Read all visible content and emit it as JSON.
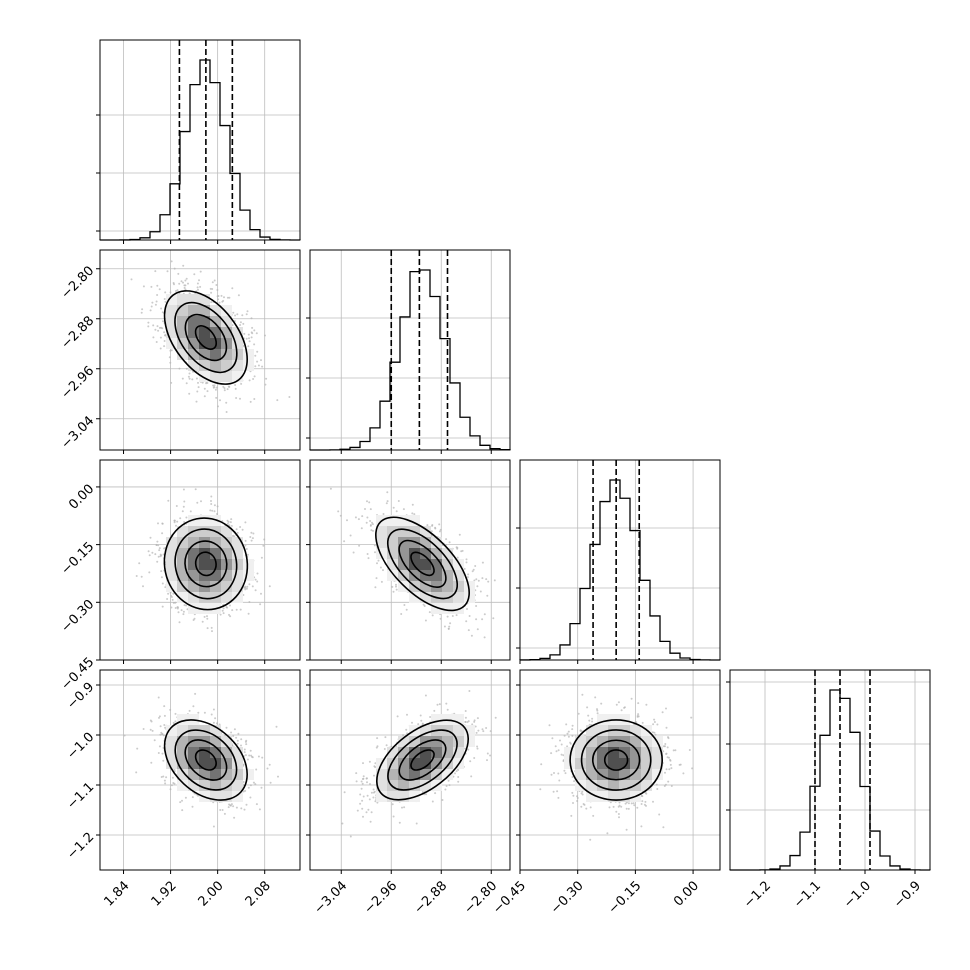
{
  "chart_data": {
    "type": "corner",
    "grid": true,
    "params": [
      {
        "range": [
          1.8,
          2.14
        ],
        "ticks": [
          "1.84",
          "1.92",
          "2.00",
          "2.08"
        ],
        "mean": 1.98,
        "sd": 0.035,
        "quantiles": [
          1.935,
          1.98,
          2.025
        ],
        "hist_ticks": [
          0.045,
          0.335,
          0.625
        ]
      },
      {
        "range": [
          -3.09,
          -2.77
        ],
        "ticks": [
          "-3.04",
          "-2.96",
          "-2.88",
          "-2.80"
        ],
        "mean": -2.91,
        "sd": 0.037,
        "quantiles": [
          -2.96,
          -2.915,
          -2.87
        ],
        "hist_ticks": [
          0.06,
          0.36,
          0.66
        ]
      },
      {
        "range": [
          -0.45,
          0.07
        ],
        "ticks": [
          "-0.45",
          "-0.30",
          "-0.15",
          "0.00"
        ],
        "mean": -0.2,
        "sd": 0.06,
        "quantiles": [
          -0.26,
          -0.2,
          -0.14
        ],
        "hist_ticks": [
          0.06,
          0.36,
          0.66
        ]
      },
      {
        "range": [
          -1.27,
          -0.87
        ],
        "ticks": [
          "-1.2",
          "-1.1",
          "-1.0",
          "-0.9"
        ],
        "mean": -1.05,
        "sd": 0.04,
        "quantiles": [
          -1.1,
          -1.05,
          -0.99
        ],
        "hist_ticks": [
          0.3,
          0.63,
          0.94
        ]
      }
    ],
    "correlations": {
      "1-0": -0.45,
      "2-0": -0.05,
      "2-1": -0.6,
      "3-0": -0.35,
      "3-1": 0.55,
      "3-2": 0.0
    }
  }
}
